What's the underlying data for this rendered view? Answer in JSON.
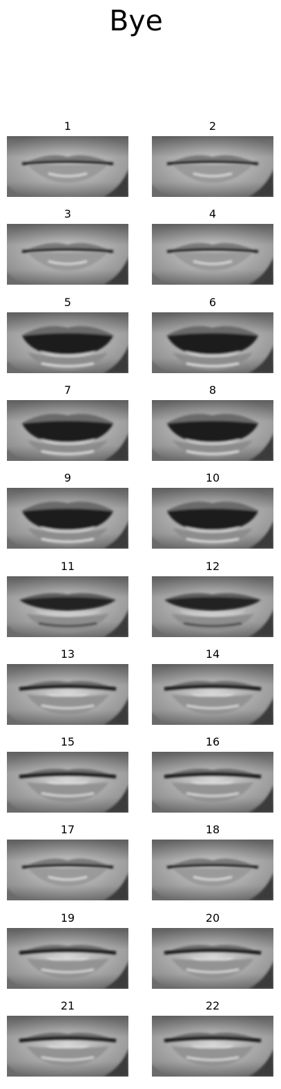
{
  "title": "Bye",
  "frames": [
    {
      "label": "1",
      "mouth": "closed"
    },
    {
      "label": "2",
      "mouth": "closed"
    },
    {
      "label": "3",
      "mouth": "closed"
    },
    {
      "label": "4",
      "mouth": "closed"
    },
    {
      "label": "5",
      "mouth": "open"
    },
    {
      "label": "6",
      "mouth": "open"
    },
    {
      "label": "7",
      "mouth": "open"
    },
    {
      "label": "8",
      "mouth": "open"
    },
    {
      "label": "9",
      "mouth": "open"
    },
    {
      "label": "10",
      "mouth": "open"
    },
    {
      "label": "11",
      "mouth": "half"
    },
    {
      "label": "12",
      "mouth": "half"
    },
    {
      "label": "13",
      "mouth": "slight"
    },
    {
      "label": "14",
      "mouth": "slight"
    },
    {
      "label": "15",
      "mouth": "slight"
    },
    {
      "label": "16",
      "mouth": "slight"
    },
    {
      "label": "17",
      "mouth": "closed"
    },
    {
      "label": "18",
      "mouth": "closed"
    },
    {
      "label": "19",
      "mouth": "slight"
    },
    {
      "label": "20",
      "mouth": "slight"
    },
    {
      "label": "21",
      "mouth": "slight"
    },
    {
      "label": "22",
      "mouth": "slight"
    }
  ]
}
